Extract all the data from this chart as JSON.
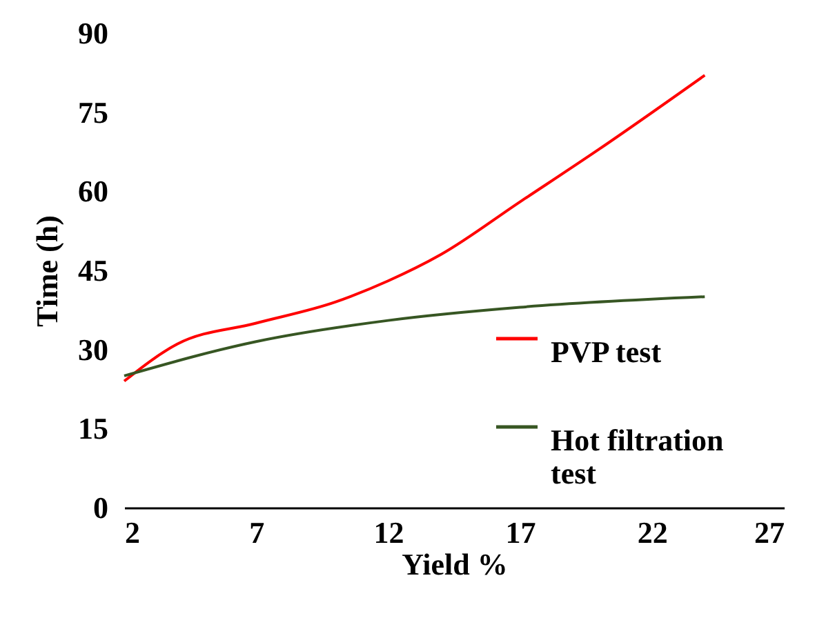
{
  "chart_data": {
    "type": "line",
    "xlabel": "Yield %",
    "ylabel": "Time  (h)",
    "xlim": [
      2,
      27
    ],
    "xticks": [
      2,
      7,
      12,
      17,
      22,
      27
    ],
    "ylim": [
      0,
      90
    ],
    "yticks": [
      0,
      15,
      30,
      45,
      60,
      75,
      90
    ],
    "grid": false,
    "legend": "bottom right",
    "line_style": "solid",
    "marker": "none",
    "series": [
      {
        "name": "PVP test",
        "color": "#ff0000",
        "x": [
          2,
          4,
          7,
          10,
          12,
          14,
          17,
          20,
          24
        ],
        "values": [
          24,
          31,
          35,
          39,
          43,
          48,
          58,
          68,
          82
        ]
      },
      {
        "name": "Hot filtration test",
        "color": "#375623",
        "x": [
          2,
          7,
          12,
          17,
          24
        ],
        "values": [
          25,
          31.5,
          35.5,
          38,
          40
        ]
      }
    ]
  }
}
